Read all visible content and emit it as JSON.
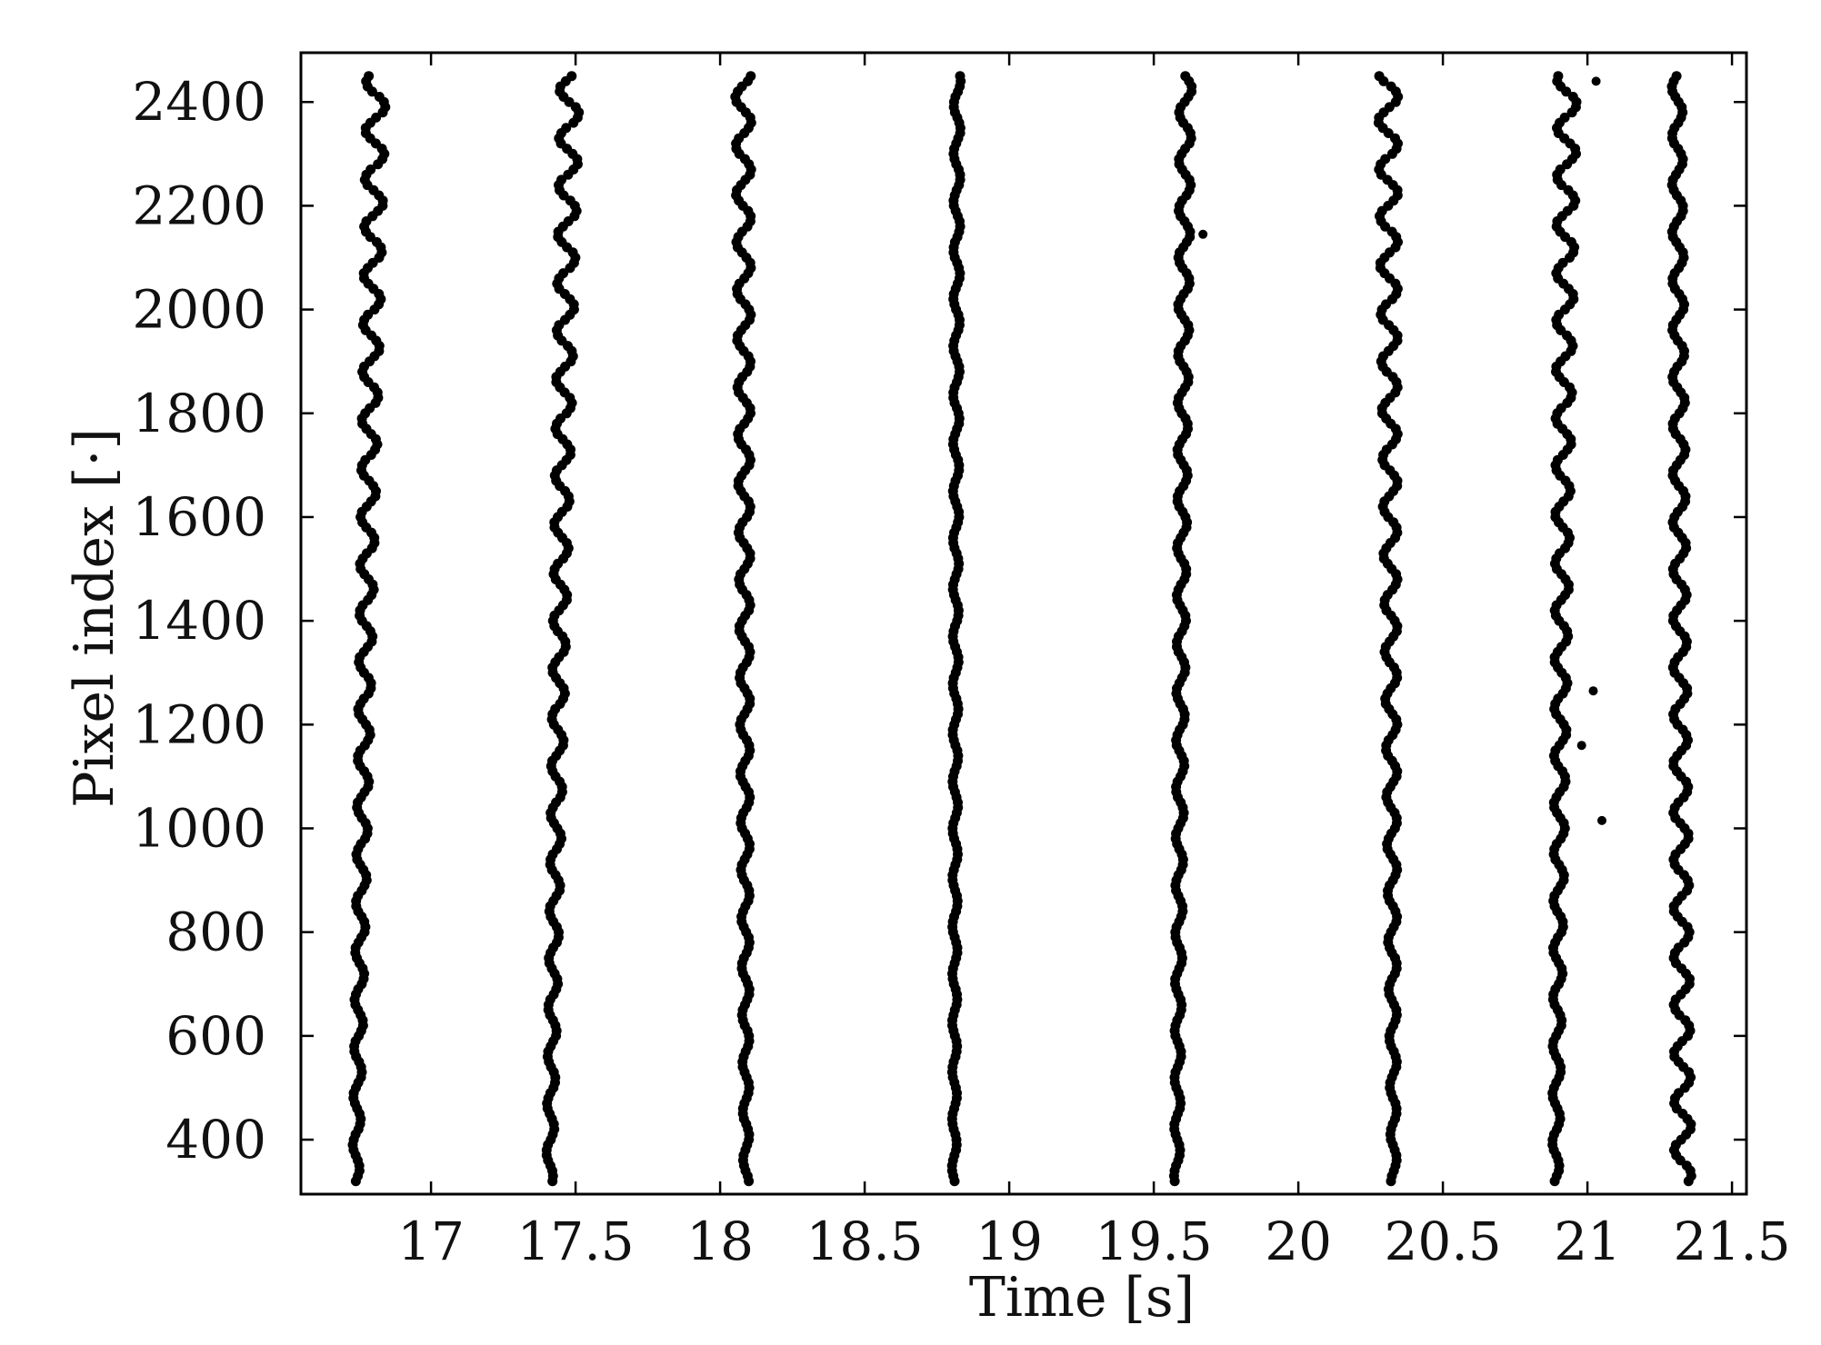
{
  "chart_data": {
    "type": "scatter",
    "title": "",
    "xlabel": "Time [s]",
    "ylabel": "Pixel index [·]",
    "xlim": [
      16.55,
      21.55
    ],
    "ylim": [
      295,
      2495
    ],
    "x_ticks": [
      17,
      17.5,
      18,
      18.5,
      19,
      19.5,
      20,
      20.5,
      21,
      21.5
    ],
    "x_tick_labels": [
      "17",
      "17.5",
      "18",
      "18.5",
      "19",
      "19.5",
      "20",
      "20.5",
      "21",
      "21.5"
    ],
    "y_ticks": [
      400,
      600,
      800,
      1000,
      1200,
      1400,
      1600,
      1800,
      2000,
      2200,
      2400
    ],
    "y_tick_labels": [
      "400",
      "600",
      "800",
      "1000",
      "1200",
      "1400",
      "1600",
      "1800",
      "2000",
      "2200",
      "2400"
    ],
    "grid": false,
    "legend": false,
    "marker_color": "#000000",
    "bursts": [
      {
        "y_range": [
          320,
          2440
        ],
        "x_bottom": 16.74,
        "x_top": 16.81,
        "wave_amp_bottom": 0.012,
        "wave_amp_top": 0.035
      },
      {
        "y_range": [
          320,
          2440
        ],
        "x_bottom": 17.41,
        "x_top": 17.48,
        "wave_amp_bottom": 0.012,
        "wave_amp_top": 0.035
      },
      {
        "y_range": [
          320,
          2440
        ],
        "x_bottom": 18.09,
        "x_top": 18.08,
        "wave_amp_bottom": 0.01,
        "wave_amp_top": 0.028
      },
      {
        "y_range": [
          320,
          2440
        ],
        "x_bottom": 18.81,
        "x_top": 18.82,
        "wave_amp_bottom": 0.008,
        "wave_amp_top": 0.012
      },
      {
        "y_range": [
          320,
          2440
        ],
        "x_bottom": 19.58,
        "x_top": 19.61,
        "wave_amp_bottom": 0.01,
        "wave_amp_top": 0.022
      },
      {
        "y_range": [
          320,
          2440
        ],
        "x_bottom": 20.33,
        "x_top": 20.31,
        "wave_amp_bottom": 0.01,
        "wave_amp_top": 0.035
      },
      {
        "y_range": [
          320,
          2440
        ],
        "x_bottom": 20.89,
        "x_top": 20.93,
        "wave_amp_bottom": 0.012,
        "wave_amp_top": 0.035
      },
      {
        "y_range": [
          320,
          2440
        ],
        "x_bottom": 21.33,
        "x_top": 21.31,
        "wave_amp_bottom": 0.03,
        "wave_amp_top": 0.018
      }
    ],
    "outliers": [
      {
        "x": 19.67,
        "y": 2145
      },
      {
        "x": 21.02,
        "y": 1265
      },
      {
        "x": 21.05,
        "y": 1015
      },
      {
        "x": 20.98,
        "y": 1160
      },
      {
        "x": 21.03,
        "y": 2440
      }
    ]
  }
}
